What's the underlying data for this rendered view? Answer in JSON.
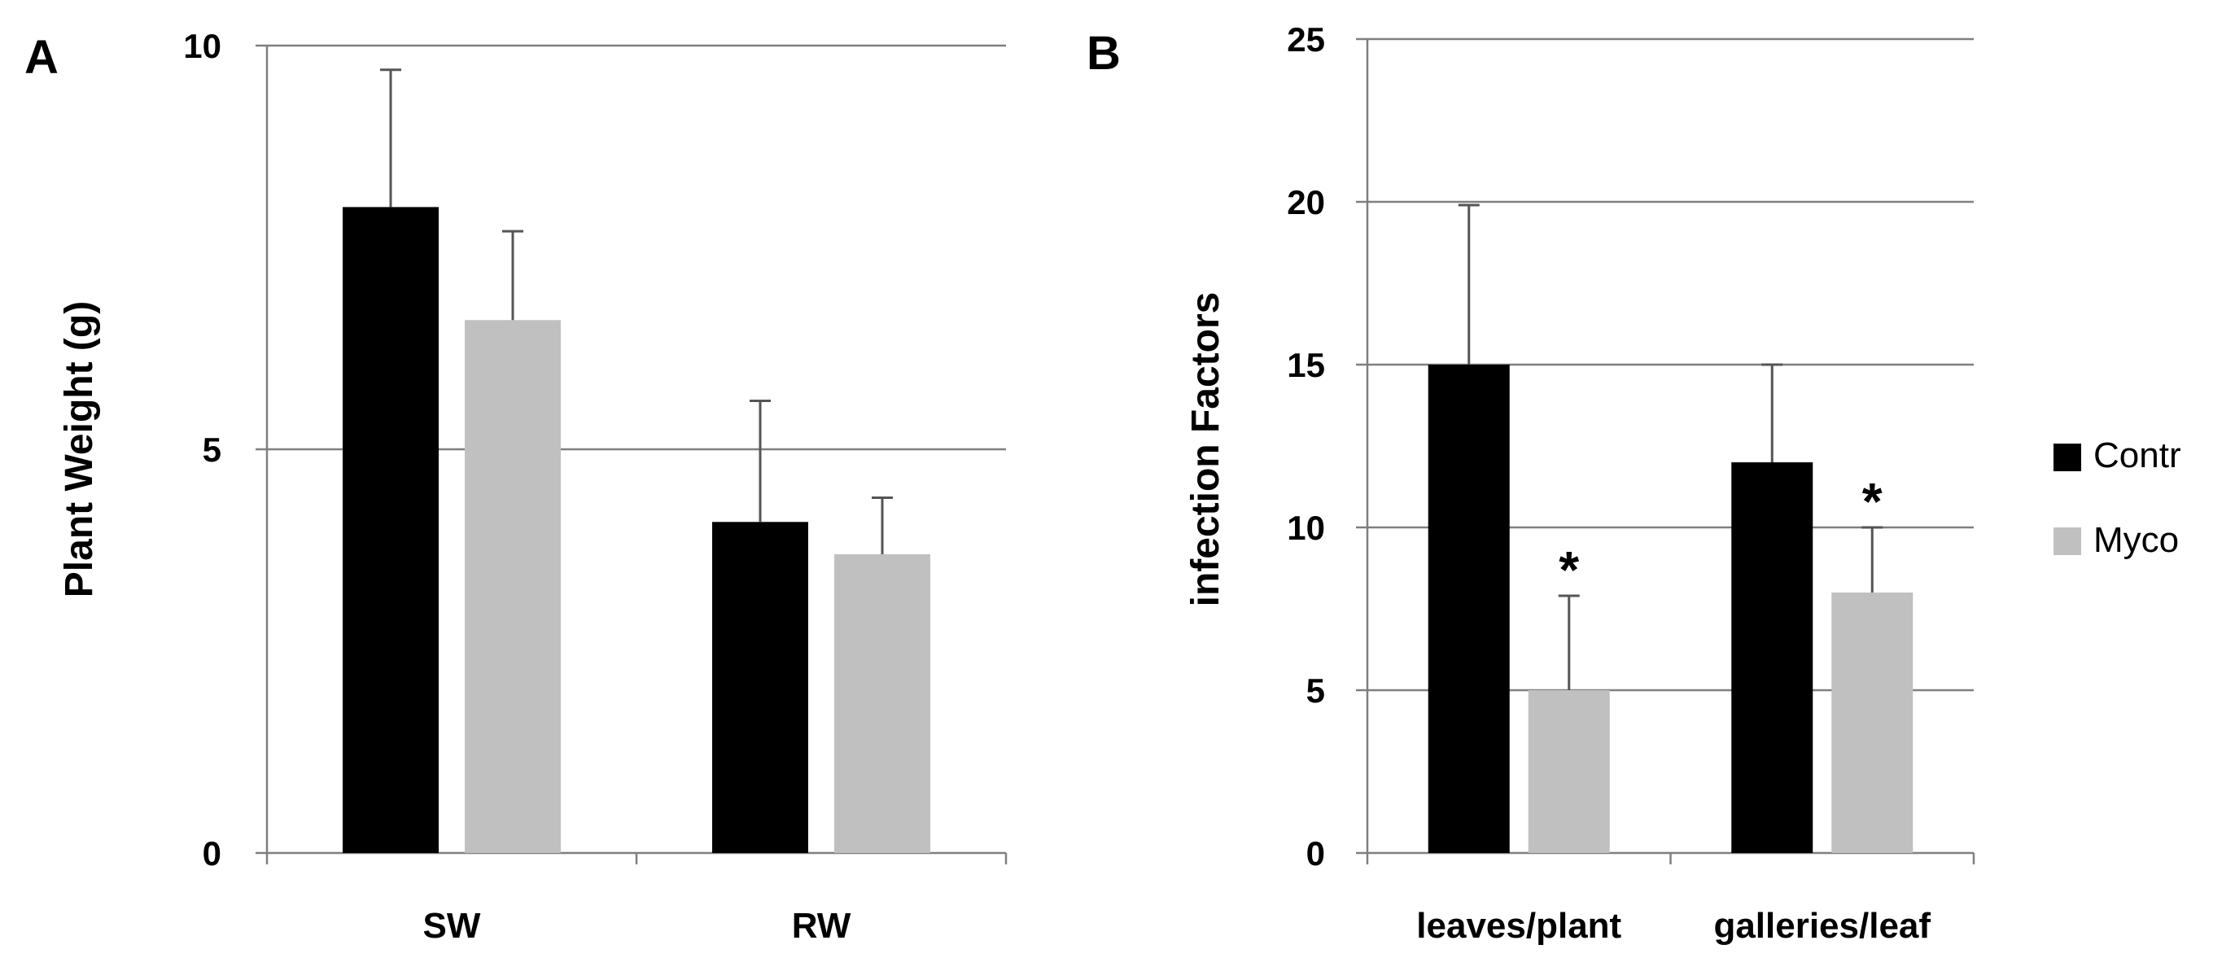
{
  "panels": {
    "a_label": "A",
    "b_label": "B"
  },
  "legend": {
    "items": [
      {
        "label": "Contr",
        "color": "#000000"
      },
      {
        "label": "Myco",
        "color": "#c0c0c0"
      }
    ]
  },
  "chart_data": [
    {
      "type": "bar",
      "panel": "A",
      "categories": [
        "SW",
        "RW"
      ],
      "series": [
        {
          "name": "Contr",
          "color": "#000000",
          "values": [
            8.0,
            4.1
          ],
          "errors": [
            1.7,
            1.5
          ]
        },
        {
          "name": "Myco",
          "color": "#c0c0c0",
          "values": [
            6.6,
            3.7
          ],
          "errors": [
            1.1,
            0.7
          ]
        }
      ],
      "ylabel": "Plant Weight (g)",
      "ylim": [
        0,
        10
      ],
      "yticks": [
        0,
        5,
        10
      ],
      "ytick_labels": [
        "0",
        "5",
        "10"
      ],
      "grid": true,
      "annotations": []
    },
    {
      "type": "bar",
      "panel": "B",
      "categories": [
        "leaves/plant",
        "galleries/leaf"
      ],
      "series": [
        {
          "name": "Contr",
          "color": "#000000",
          "values": [
            15,
            12
          ],
          "errors": [
            4.9,
            3.0
          ]
        },
        {
          "name": "Myco",
          "color": "#c0c0c0",
          "values": [
            5,
            8
          ],
          "errors": [
            2.9,
            2.0
          ]
        }
      ],
      "ylabel": "infection Factors",
      "ylim": [
        0,
        25
      ],
      "yticks": [
        0,
        5,
        10,
        15,
        20,
        25
      ],
      "ytick_labels": [
        "0",
        "5",
        "10",
        "15",
        "20",
        "25"
      ],
      "grid": true,
      "legend_position": "right",
      "annotations": [
        {
          "text": "*",
          "series": "Myco",
          "category": "leaves/plant"
        },
        {
          "text": "*",
          "series": "Myco",
          "category": "galleries/leaf"
        }
      ]
    }
  ]
}
